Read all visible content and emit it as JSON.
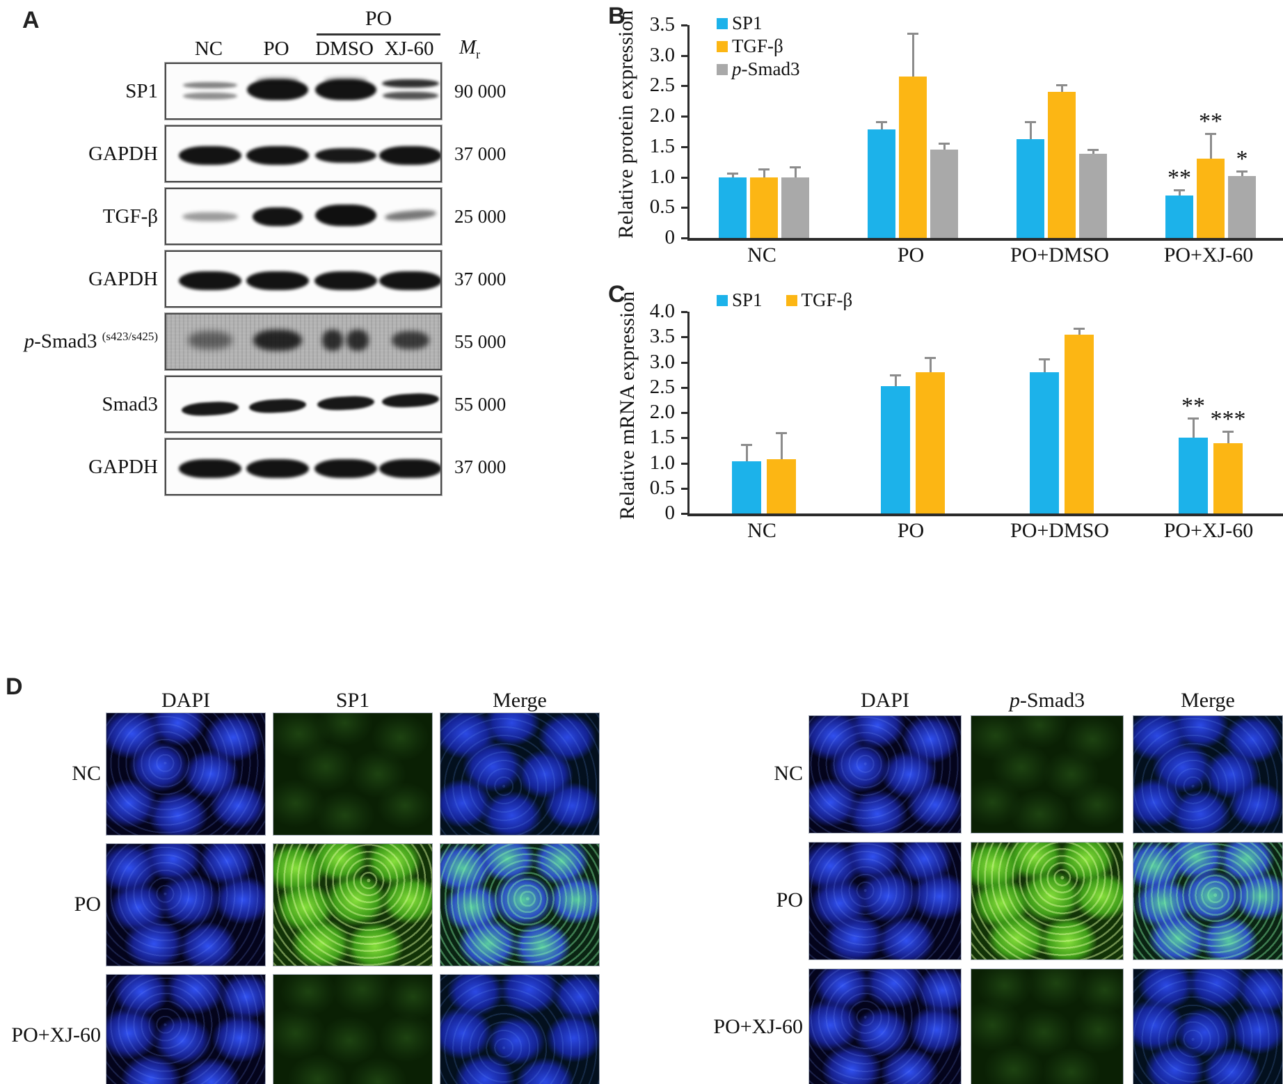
{
  "panels": {
    "a": {
      "label": "A",
      "header_group": "PO",
      "lanes": [
        "NC",
        "PO",
        "DMSO",
        "XJ-60"
      ],
      "mr_header": {
        "main": "M",
        "sub": "r"
      },
      "rows": [
        {
          "label": "SP1",
          "mr": "90 000",
          "bg": "white",
          "bands": [
            "double-faint",
            "thick-top",
            "thick-top",
            "double-med"
          ]
        },
        {
          "label": "GAPDH",
          "mr": "37 000",
          "bg": "white",
          "bands": [
            "gapdh",
            "gapdh",
            "gapdh-thin",
            "gapdh"
          ]
        },
        {
          "label": "TGF-β",
          "mr": "25 000",
          "bg": "white",
          "bands": [
            "faint",
            "thick",
            "thick-wide",
            "faint-med"
          ]
        },
        {
          "label": "GAPDH",
          "mr": "37 000",
          "bg": "white",
          "bands": [
            "gapdh",
            "gapdh",
            "gapdh",
            "gapdh"
          ]
        },
        {
          "label": "p-Smad3",
          "sup": "(s423/s425)",
          "mr": "55 000",
          "bg": "noise",
          "bands": [
            "fuzzy-med",
            "fuzzy-dark",
            "fuzzy-split",
            "fuzzy-med2"
          ]
        },
        {
          "label": "Smad3",
          "mr": "55 000",
          "bg": "white",
          "bands": [
            "smad",
            "smad",
            "smad",
            "smad"
          ]
        },
        {
          "label": "GAPDH",
          "mr": "37 000",
          "bg": "white",
          "bands": [
            "gapdh",
            "gapdh",
            "gapdh",
            "gapdh"
          ]
        }
      ]
    },
    "b": {
      "label": "B"
    },
    "c": {
      "label": "C"
    },
    "d": {
      "label": "D",
      "left": {
        "headers": [
          "DAPI",
          "SP1",
          "Merge"
        ],
        "rows": [
          {
            "label": "NC",
            "channels": [
              "dapi",
              "gdim",
              "mdim"
            ]
          },
          {
            "label": "PO",
            "channels": [
              "dapi",
              "gbright",
              "mbright"
            ]
          },
          {
            "label": "PO+XJ-60",
            "channels": [
              "dapi",
              "gdim",
              "mdim"
            ]
          }
        ]
      },
      "right": {
        "headers": [
          "DAPI",
          "p-Smad3",
          "Merge"
        ],
        "rows": [
          {
            "label": "NC",
            "channels": [
              "dapi",
              "gdim",
              "mdim"
            ]
          },
          {
            "label": "PO",
            "channels": [
              "dapi",
              "gbright",
              "mbright"
            ]
          },
          {
            "label": "PO+XJ-60",
            "channels": [
              "dapi",
              "gdim",
              "mdim"
            ]
          }
        ]
      }
    }
  },
  "chart_data": [
    {
      "type": "bar",
      "title": "",
      "xlabel": "",
      "ylabel": "Relative protein expression",
      "categories": [
        "NC",
        "PO",
        "PO+DMSO",
        "PO+XJ-60"
      ],
      "ylim": [
        0,
        3.5
      ],
      "yticks": [
        "0",
        "0.5",
        "1.0",
        "1.5",
        "2.0",
        "2.5",
        "3.0",
        "3.5"
      ],
      "grid": "off",
      "legend_position": "top-left-vertical",
      "series": [
        {
          "name": "SP1",
          "color": "#1cb2ea",
          "values": [
            1.0,
            1.78,
            1.62,
            0.7
          ],
          "errors": [
            0.05,
            0.12,
            0.28,
            0.08
          ],
          "sig": [
            "",
            "",
            "",
            "**"
          ]
        },
        {
          "name": "TGF-β",
          "color": "#fcb614",
          "values": [
            1.0,
            2.65,
            2.4,
            1.3
          ],
          "errors": [
            0.12,
            0.7,
            0.1,
            0.4
          ],
          "sig": [
            "",
            "",
            "",
            "**"
          ]
        },
        {
          "name": "p-Smad3",
          "color": "#a9a9a9",
          "values": [
            1.0,
            1.45,
            1.38,
            1.02
          ],
          "errors": [
            0.16,
            0.1,
            0.06,
            0.07
          ],
          "sig": [
            "",
            "",
            "",
            "*"
          ]
        }
      ]
    },
    {
      "type": "bar",
      "title": "",
      "xlabel": "",
      "ylabel": "Relative mRNA expression",
      "categories": [
        "NC",
        "PO",
        "PO+DMSO",
        "PO+XJ-60"
      ],
      "ylim": [
        0,
        4.0
      ],
      "yticks": [
        "0",
        "0.5",
        "1.0",
        "1.5",
        "2.0",
        "2.5",
        "3.0",
        "3.5",
        "4.0"
      ],
      "grid": "off",
      "legend_position": "top-horizontal",
      "series": [
        {
          "name": "SP1",
          "color": "#1cb2ea",
          "values": [
            1.03,
            2.53,
            2.8,
            1.5
          ],
          "errors": [
            0.32,
            0.2,
            0.25,
            0.38
          ],
          "sig": [
            "",
            "",
            "",
            "**"
          ]
        },
        {
          "name": "TGF-β",
          "color": "#fcb614",
          "values": [
            1.07,
            2.8,
            3.55,
            1.4
          ],
          "errors": [
            0.52,
            0.28,
            0.1,
            0.22
          ],
          "sig": [
            "",
            "",
            "",
            "***"
          ]
        }
      ]
    }
  ]
}
